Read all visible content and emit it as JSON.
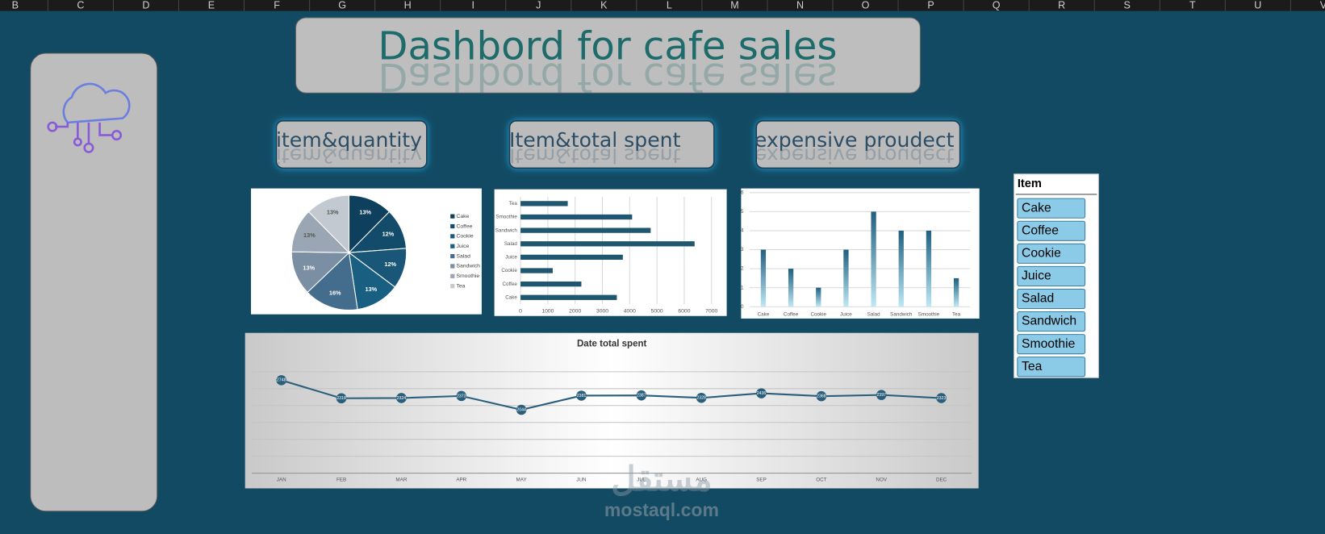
{
  "columns": [
    "B",
    "C",
    "D",
    "E",
    "F",
    "G",
    "H",
    "I",
    "J",
    "K",
    "L",
    "M",
    "N",
    "O",
    "P",
    "Q",
    "R",
    "S",
    "T",
    "U",
    "V"
  ],
  "title": "Dashbord for  cafe sales",
  "buttons": [
    "item&quantity",
    "Item&total spent",
    "expensive proudect"
  ],
  "chart_data": [
    {
      "type": "pie",
      "categories": [
        "Cake",
        "Coffee",
        "Cookie",
        "Juice",
        "Salad",
        "Sandwich",
        "Smoothie",
        "Tea"
      ],
      "values": [
        13,
        12,
        12,
        13,
        16,
        13,
        13,
        13
      ],
      "value_labels": [
        "13%",
        "12%",
        "12%",
        "13%",
        "16%",
        "13%",
        "13%",
        "13%"
      ],
      "colors": [
        "#0e3f5c",
        "#134b6b",
        "#1a5677",
        "#185f82",
        "#446c8c",
        "#7a8ea4",
        "#9aa6b4",
        "#c3c9d0"
      ]
    },
    {
      "type": "bar",
      "orientation": "horizontal",
      "categories": [
        "Cake",
        "Coffee",
        "Cookie",
        "Juice",
        "Salad",
        "Sandwich",
        "Smoothie",
        "Tea"
      ],
      "values": [
        3530,
        2230,
        1180,
        3750,
        6380,
        4770,
        4090,
        1730
      ],
      "color": "#1f5670",
      "xlim": [
        0,
        7000
      ],
      "xticks": [
        0,
        1000,
        2000,
        3000,
        4000,
        5000,
        6000,
        7000
      ],
      "grid": true
    },
    {
      "type": "bar",
      "categories": [
        "Cake",
        "Coffee",
        "Cookie",
        "Juice",
        "Salad",
        "Sandwich",
        "Smoothie",
        "Tea"
      ],
      "values": [
        3,
        2,
        1,
        3,
        5,
        4,
        4,
        1.5
      ],
      "color": "#1f5f7f",
      "ylim": [
        0,
        6
      ],
      "yticks": [
        0,
        1,
        2,
        3,
        4,
        5,
        6
      ],
      "grid": true
    },
    {
      "type": "line",
      "title": "Date total spent",
      "categories": [
        "JAN",
        "FEB",
        "MAR",
        "APR",
        "MAY",
        "JUN",
        "JUL",
        "AUG",
        "SEP",
        "OCT",
        "NOV",
        "DEC"
      ],
      "values": [
        2748,
        2318,
        2324,
        2373,
        2044,
        2381,
        2387,
        2328,
        2436,
        2368,
        2397,
        2323
      ],
      "color": "#2a5f7c"
    }
  ],
  "slicer": {
    "title": "Item",
    "items": [
      "Cake",
      "Coffee",
      "Cookie",
      "Juice",
      "Salad",
      "Sandwich",
      "Smoothie",
      "Tea"
    ]
  },
  "watermark": {
    "logo": "مستقل",
    "text": "mostaql.com"
  }
}
